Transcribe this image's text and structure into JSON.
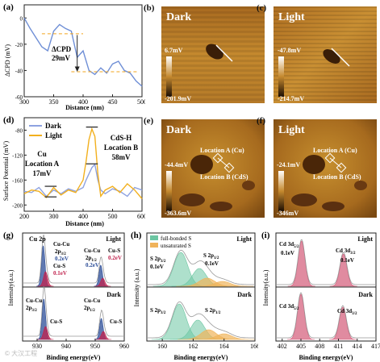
{
  "panels": {
    "a": {
      "label": "(a)",
      "ylabel": "ΔCPD (mV)",
      "xlabel": "Distance (nm)",
      "annotation": [
        "ΔCPD",
        "29mV"
      ]
    },
    "b": {
      "label": "(b)",
      "title": "Dark",
      "scale_max": "6.7mV",
      "scale_min": "-201.9mV"
    },
    "c": {
      "label": "(c)",
      "title": "Light",
      "scale_max": "-47.8mV",
      "scale_min": "-214.7mV"
    },
    "d": {
      "label": "(d)",
      "ylabel": "Surface Potential (mV)",
      "xlabel": "Distance (nm)",
      "ann_a": [
        "Cu",
        "Location A",
        "17mV"
      ],
      "ann_b": [
        "CdS-H",
        "Location B",
        "58mV"
      ]
    },
    "e": {
      "label": "(e)",
      "title": "Dark",
      "loc_a": "Location A (Cu)",
      "loc_b": "Location B (CdS)",
      "scale_max": "-44.4mV",
      "scale_min": "-363.6mV"
    },
    "f": {
      "label": "(f)",
      "title": "Light",
      "loc_a": "Location A (Cu)",
      "loc_b": "Location B (CdS)",
      "scale_max": "-24.1mV",
      "scale_min": "-346mV"
    },
    "g": {
      "label": "(g)",
      "ylabel": "Intensity(a.u.)",
      "xlabel": "Binding energy(eV)",
      "light": "Light",
      "dark": "Dark",
      "cu2p": "Cu 2p",
      "cucu_l1": [
        "Cu-Cu",
        "2p",
        "3/2",
        "0.2eV"
      ],
      "cus_l1": [
        "Cu-S",
        "0.1eV"
      ],
      "cucu_l2": [
        "Cu-Cu",
        "2p",
        "1/2",
        "0.2eV"
      ],
      "cus_l2": [
        "Cu-S",
        "0.2eV"
      ],
      "cucu_d1": [
        "Cu-Cu",
        "2p",
        "3/2"
      ],
      "cus_d1": "Cu-S",
      "cucu_d2": [
        "Cu-Cu",
        "2p",
        "1/2"
      ],
      "cus_d2": "Cu-S"
    },
    "h": {
      "label": "(h)",
      "ylabel": "Intensity (a.u.)",
      "xlabel": "Binding energy(eV)",
      "legend": [
        "full-bonded S",
        "unsaturated S"
      ],
      "light": "Light",
      "dark": "Dark",
      "s32": [
        "S 2p",
        "3/2",
        "0.1eV"
      ],
      "s12": [
        "S 2p",
        "1/2",
        "0.1eV"
      ],
      "s32d": [
        "S 2p",
        "3/2"
      ],
      "s12d": [
        "S 2p",
        "1/2"
      ]
    },
    "i": {
      "label": "(i)",
      "ylabel": "Intensity(a.u.)",
      "xlabel": "Binding energy(eV)",
      "light": "Light",
      "dark": "Dark",
      "cd52": [
        "Cd 3d",
        "5/2",
        "0.1eV"
      ],
      "cd32": [
        "Cd 3d",
        "3/2",
        "0.1eV"
      ],
      "cd52d": [
        "Cd 3d",
        "5/2"
      ],
      "cd32d": [
        "Cd 3d",
        "3/2"
      ]
    }
  },
  "watermark": "© 大汉工程",
  "colors": {
    "cpd_line": "#6f8fd6",
    "dark_line": "#8ea2e0",
    "light_line": "#f2b01e",
    "dashed": "#f2a51c",
    "cu_peak": "#2b4c97",
    "cus_peak": "#c0224d",
    "full_s": "#6cc6a2",
    "unsat_s": "#f0b35a",
    "cd_peak": "#d35a78"
  },
  "chart_data": [
    {
      "panel": "a",
      "type": "line",
      "x": [
        300,
        310,
        320,
        330,
        340,
        350,
        360,
        370,
        380,
        390,
        400,
        410,
        420,
        430,
        440,
        450,
        460,
        470,
        480,
        490,
        500
      ],
      "values": [
        0,
        -8,
        -15,
        -22,
        -25,
        -10,
        -5,
        -8,
        -10,
        -30,
        -25,
        -40,
        -43,
        -38,
        -42,
        -35,
        -33,
        -40,
        -42,
        -48,
        -52
      ],
      "xlabel": "Distance (nm)",
      "ylabel": "ΔCPD (mV)",
      "xlim": [
        300,
        500
      ],
      "ylim": [
        -60,
        10
      ],
      "xticks": [
        300,
        350,
        400,
        450,
        500
      ],
      "yticks": [
        -60,
        -40,
        -20,
        0
      ]
    },
    {
      "panel": "d",
      "type": "line",
      "xlabel": "Distance (nm)",
      "ylabel": "Surface Potential (mV)",
      "xlim": [
        200,
        600
      ],
      "ylim": [
        -210,
        -60
      ],
      "xticks": [
        200,
        300,
        400,
        500,
        600
      ],
      "yticks": [
        -200,
        -160,
        -120,
        -80
      ],
      "series": [
        {
          "name": "Dark",
          "x": [
            200,
            225,
            250,
            275,
            300,
            325,
            350,
            375,
            400,
            410,
            420,
            430,
            440,
            450,
            460,
            475,
            500,
            525,
            550,
            575,
            600
          ],
          "values": [
            -178,
            -180,
            -172,
            -186,
            -176,
            -182,
            -174,
            -178,
            -172,
            -160,
            -150,
            -140,
            -135,
            -160,
            -176,
            -182,
            -174,
            -178,
            -186,
            -172,
            -176
          ]
        },
        {
          "name": "Light",
          "x": [
            200,
            225,
            250,
            275,
            300,
            325,
            350,
            375,
            400,
            410,
            420,
            430,
            440,
            450,
            460,
            475,
            500,
            525,
            550,
            575,
            600
          ],
          "values": [
            -182,
            -176,
            -178,
            -188,
            -172,
            -184,
            -176,
            -180,
            -160,
            -130,
            -95,
            -78,
            -90,
            -150,
            -186,
            -176,
            -170,
            -180,
            -166,
            -176,
            -190
          ]
        }
      ]
    },
    {
      "panel": "g",
      "type": "area",
      "xlabel": "Binding energy(eV)",
      "ylabel": "Intensity(a.u.)",
      "xlim": [
        925,
        960
      ],
      "xticks": [
        930,
        940,
        950,
        960
      ]
    },
    {
      "panel": "h",
      "type": "area",
      "xlabel": "Binding energy(eV)",
      "ylabel": "Intensity (a.u.)",
      "xlim": [
        159,
        166
      ],
      "xticks": [
        160,
        162,
        164,
        166
      ],
      "legend": [
        "full-bonded S",
        "unsaturated S"
      ]
    },
    {
      "panel": "i",
      "type": "area",
      "xlabel": "Binding energy(eV)",
      "ylabel": "Intensity(a.u.)",
      "xlim": [
        401,
        417
      ],
      "xticks": [
        402,
        405,
        408,
        411,
        414,
        417
      ]
    }
  ]
}
